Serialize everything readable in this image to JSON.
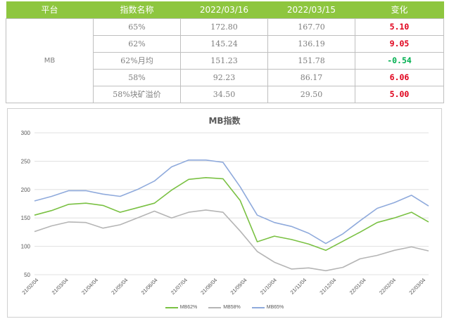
{
  "table": {
    "headers": [
      "平台",
      "指数名称",
      "2022/03/16",
      "2022/03/15",
      "变化"
    ],
    "platform": "MB",
    "rows": [
      {
        "name": "65%",
        "d1": "172.80",
        "d2": "167.70",
        "change": "5.10",
        "color": "#e0001b"
      },
      {
        "name": "62%",
        "d1": "145.24",
        "d2": "136.19",
        "change": "9.05",
        "color": "#e0001b"
      },
      {
        "name": "62%月均",
        "d1": "151.23",
        "d2": "151.78",
        "change": "-0.54",
        "color": "#00b050"
      },
      {
        "name": "58%",
        "d1": "92.23",
        "d2": "86.17",
        "change": "6.06",
        "color": "#e0001b"
      },
      {
        "name": "58%块矿溢价",
        "d1": "34.50",
        "d2": "29.50",
        "change": "5.00",
        "color": "#e0001b"
      }
    ]
  },
  "chart_data": {
    "type": "line",
    "title": "MB指数",
    "ylim": [
      50,
      300
    ],
    "yticks": [
      "300",
      "250",
      "200",
      "150",
      "100",
      "50"
    ],
    "xlabels": [
      "21/02/04",
      "21/03/04",
      "21/04/04",
      "21/05/04",
      "21/06/04",
      "21/07/04",
      "21/08/04",
      "21/09/04",
      "21/10/04",
      "21/11/04",
      "21/12/04",
      "22/01/04",
      "22/02/04",
      "22/03/04"
    ],
    "grid": "horizontal",
    "legend_position": "bottom",
    "series": [
      {
        "name": "MB62%",
        "color": "#7ac143",
        "values": [
          155,
          163,
          174,
          176,
          172,
          160,
          168,
          176,
          199,
          218,
          221,
          219,
          181,
          108,
          118,
          112,
          104,
          93,
          109,
          125,
          142,
          150,
          160,
          143
        ]
      },
      {
        "name": "MB58%",
        "color": "#b5b5b5",
        "values": [
          126,
          136,
          143,
          142,
          132,
          138,
          150,
          162,
          150,
          160,
          164,
          160,
          127,
          91,
          72,
          60,
          62,
          57,
          63,
          78,
          84,
          93,
          99,
          92
        ]
      },
      {
        "name": "MB65%",
        "color": "#8faadc",
        "values": [
          180,
          188,
          198,
          198,
          192,
          188,
          200,
          215,
          240,
          252,
          252,
          248,
          205,
          155,
          142,
          135,
          123,
          105,
          122,
          145,
          167,
          177,
          190,
          171
        ]
      }
    ]
  }
}
